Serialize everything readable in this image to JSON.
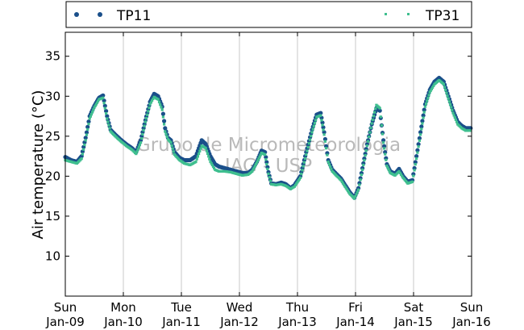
{
  "chart_data": {
    "type": "scatter",
    "title": "",
    "xlabel": "",
    "ylabel": "Air temperature (°C)",
    "ylim": [
      5,
      38
    ],
    "xlim_days": [
      0,
      7
    ],
    "y_ticks": [
      10,
      15,
      20,
      25,
      30,
      35
    ],
    "x_ticks": [
      {
        "day": "Sun",
        "date": "Jan-09"
      },
      {
        "day": "Mon",
        "date": "Jan-10"
      },
      {
        "day": "Tue",
        "date": "Jan-11"
      },
      {
        "day": "Wed",
        "date": "Jan-12"
      },
      {
        "day": "Thu",
        "date": "Jan-13"
      },
      {
        "day": "Fri",
        "date": "Jan-14"
      },
      {
        "day": "Sat",
        "date": "Jan-15"
      },
      {
        "day": "Sun",
        "date": "Jan-16"
      }
    ],
    "grid": "vertical",
    "legend_position": "top",
    "watermark": [
      "Grupo de Micrometeorologia",
      "IAG - USP"
    ],
    "series": [
      {
        "name": "TP11",
        "color": "#1a4f8a",
        "marker": "dot",
        "points": [
          [
            0.0,
            22.4
          ],
          [
            0.1,
            22.0
          ],
          [
            0.2,
            21.8
          ],
          [
            0.28,
            22.5
          ],
          [
            0.35,
            24.8
          ],
          [
            0.42,
            27.5
          ],
          [
            0.5,
            28.8
          ],
          [
            0.58,
            29.8
          ],
          [
            0.65,
            30.1
          ],
          [
            0.72,
            27.5
          ],
          [
            0.78,
            25.8
          ],
          [
            0.86,
            25.2
          ],
          [
            0.95,
            24.6
          ],
          [
            1.05,
            24.0
          ],
          [
            1.15,
            23.5
          ],
          [
            1.22,
            23.0
          ],
          [
            1.3,
            24.5
          ],
          [
            1.38,
            27.0
          ],
          [
            1.46,
            29.3
          ],
          [
            1.53,
            30.3
          ],
          [
            1.6,
            30.0
          ],
          [
            1.67,
            28.7
          ],
          [
            1.72,
            26.0
          ],
          [
            1.77,
            24.8
          ],
          [
            1.82,
            24.5
          ],
          [
            1.88,
            23.0
          ],
          [
            1.97,
            22.3
          ],
          [
            2.05,
            22.0
          ],
          [
            2.15,
            22.0
          ],
          [
            2.25,
            22.5
          ],
          [
            2.35,
            24.5
          ],
          [
            2.42,
            24.0
          ],
          [
            2.5,
            22.5
          ],
          [
            2.58,
            21.5
          ],
          [
            2.65,
            21.2
          ],
          [
            2.75,
            21.0
          ],
          [
            2.85,
            20.8
          ],
          [
            2.95,
            20.6
          ],
          [
            3.05,
            20.4
          ],
          [
            3.15,
            20.4
          ],
          [
            3.22,
            20.8
          ],
          [
            3.3,
            21.8
          ],
          [
            3.38,
            23.2
          ],
          [
            3.44,
            23.0
          ],
          [
            3.5,
            20.5
          ],
          [
            3.55,
            19.1
          ],
          [
            3.63,
            19.0
          ],
          [
            3.72,
            19.2
          ],
          [
            3.8,
            19.0
          ],
          [
            3.88,
            18.5
          ],
          [
            3.95,
            18.9
          ],
          [
            4.05,
            20.0
          ],
          [
            4.15,
            23.0
          ],
          [
            4.25,
            25.8
          ],
          [
            4.33,
            27.7
          ],
          [
            4.4,
            27.9
          ],
          [
            4.46,
            25.5
          ],
          [
            4.53,
            22.0
          ],
          [
            4.6,
            20.8
          ],
          [
            4.68,
            20.2
          ],
          [
            4.75,
            19.7
          ],
          [
            4.82,
            18.9
          ],
          [
            4.9,
            18.0
          ],
          [
            4.98,
            17.3
          ],
          [
            5.05,
            18.5
          ],
          [
            5.12,
            21.0
          ],
          [
            5.2,
            24.0
          ],
          [
            5.28,
            26.5
          ],
          [
            5.36,
            28.5
          ],
          [
            5.42,
            28.2
          ],
          [
            5.48,
            24.5
          ],
          [
            5.54,
            21.5
          ],
          [
            5.6,
            20.6
          ],
          [
            5.68,
            20.3
          ],
          [
            5.75,
            20.9
          ],
          [
            5.82,
            20.0
          ],
          [
            5.9,
            19.3
          ],
          [
            5.98,
            19.5
          ],
          [
            6.05,
            22.5
          ],
          [
            6.12,
            25.5
          ],
          [
            6.2,
            29.0
          ],
          [
            6.28,
            30.8
          ],
          [
            6.36,
            31.8
          ],
          [
            6.44,
            32.3
          ],
          [
            6.52,
            31.8
          ],
          [
            6.6,
            30.0
          ],
          [
            6.68,
            28.2
          ],
          [
            6.76,
            26.8
          ],
          [
            6.83,
            26.3
          ],
          [
            6.9,
            26.0
          ],
          [
            7.0,
            26.0
          ]
        ]
      },
      {
        "name": "TP31",
        "color": "#3fbf8f",
        "marker": "square",
        "points": [
          [
            0.0,
            22.0
          ],
          [
            0.1,
            21.8
          ],
          [
            0.2,
            21.6
          ],
          [
            0.28,
            22.2
          ],
          [
            0.35,
            24.5
          ],
          [
            0.42,
            27.2
          ],
          [
            0.5,
            28.6
          ],
          [
            0.58,
            29.6
          ],
          [
            0.65,
            29.8
          ],
          [
            0.72,
            27.2
          ],
          [
            0.78,
            25.6
          ],
          [
            0.86,
            25.0
          ],
          [
            0.95,
            24.4
          ],
          [
            1.05,
            23.8
          ],
          [
            1.15,
            23.3
          ],
          [
            1.22,
            22.8
          ],
          [
            1.3,
            24.2
          ],
          [
            1.38,
            26.8
          ],
          [
            1.46,
            29.0
          ],
          [
            1.53,
            29.9
          ],
          [
            1.6,
            29.6
          ],
          [
            1.67,
            28.3
          ],
          [
            1.72,
            25.6
          ],
          [
            1.77,
            24.6
          ],
          [
            1.82,
            24.2
          ],
          [
            1.88,
            22.7
          ],
          [
            1.97,
            22.0
          ],
          [
            2.05,
            21.6
          ],
          [
            2.15,
            21.4
          ],
          [
            2.25,
            21.8
          ],
          [
            2.35,
            23.8
          ],
          [
            2.42,
            23.5
          ],
          [
            2.5,
            21.8
          ],
          [
            2.58,
            20.8
          ],
          [
            2.65,
            20.6
          ],
          [
            2.75,
            20.6
          ],
          [
            2.85,
            20.5
          ],
          [
            2.95,
            20.3
          ],
          [
            3.05,
            20.1
          ],
          [
            3.15,
            20.2
          ],
          [
            3.22,
            20.6
          ],
          [
            3.3,
            21.7
          ],
          [
            3.38,
            22.9
          ],
          [
            3.44,
            22.7
          ],
          [
            3.5,
            20.3
          ],
          [
            3.55,
            19.0
          ],
          [
            3.63,
            18.9
          ],
          [
            3.72,
            19.0
          ],
          [
            3.8,
            18.8
          ],
          [
            3.88,
            18.4
          ],
          [
            3.95,
            18.7
          ],
          [
            4.05,
            19.8
          ],
          [
            4.15,
            22.7
          ],
          [
            4.25,
            25.5
          ],
          [
            4.33,
            27.4
          ],
          [
            4.4,
            27.6
          ],
          [
            4.46,
            25.2
          ],
          [
            4.53,
            21.8
          ],
          [
            4.6,
            20.6
          ],
          [
            4.68,
            20.0
          ],
          [
            4.75,
            19.5
          ],
          [
            4.82,
            18.7
          ],
          [
            4.9,
            17.8
          ],
          [
            4.98,
            17.2
          ],
          [
            5.05,
            18.3
          ],
          [
            5.12,
            20.8
          ],
          [
            5.2,
            23.8
          ],
          [
            5.28,
            26.6
          ],
          [
            5.36,
            28.9
          ],
          [
            5.42,
            28.5
          ],
          [
            5.48,
            24.2
          ],
          [
            5.54,
            21.3
          ],
          [
            5.6,
            20.4
          ],
          [
            5.68,
            20.1
          ],
          [
            5.75,
            20.6
          ],
          [
            5.82,
            19.8
          ],
          [
            5.9,
            19.1
          ],
          [
            5.98,
            19.3
          ],
          [
            6.05,
            22.2
          ],
          [
            6.12,
            25.2
          ],
          [
            6.2,
            28.7
          ],
          [
            6.28,
            30.5
          ],
          [
            6.36,
            31.5
          ],
          [
            6.44,
            32.0
          ],
          [
            6.52,
            31.5
          ],
          [
            6.6,
            29.7
          ],
          [
            6.68,
            27.9
          ],
          [
            6.76,
            26.5
          ],
          [
            6.83,
            26.0
          ],
          [
            6.9,
            25.7
          ],
          [
            7.0,
            25.7
          ]
        ]
      }
    ]
  }
}
